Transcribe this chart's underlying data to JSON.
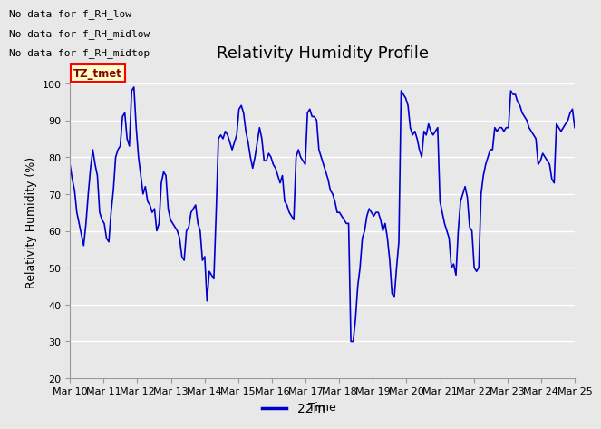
{
  "title": "Relativity Humidity Profile",
  "xlabel": "Time",
  "ylabel": "Relativity Humidity (%)",
  "ylim": [
    20,
    105
  ],
  "yticks": [
    20,
    30,
    40,
    50,
    60,
    70,
    80,
    90,
    100
  ],
  "line_color": "#0000cc",
  "line_width": 1.2,
  "bg_color": "#e8e8e8",
  "plot_bg_color": "#e8e8e8",
  "legend_label": "22m",
  "legend_line_color": "#0000cc",
  "no_data_texts": [
    "No data for f_RH_low",
    "No data for f_RH_midlow",
    "No data for f_RH_midtop"
  ],
  "tz_tmet_label": "TZ_tmet",
  "x_tick_labels": [
    "Mar 10",
    "Mar 11",
    "Mar 12",
    "Mar 13",
    "Mar 14",
    "Mar 15",
    "Mar 16",
    "Mar 17",
    "Mar 18",
    "Mar 19",
    "Mar 20",
    "Mar 21",
    "Mar 22",
    "Mar 23",
    "Mar 24",
    "Mar 25"
  ],
  "humidity_values": [
    78,
    74,
    71,
    65,
    62,
    59,
    56,
    62,
    70,
    77,
    82,
    78,
    75,
    65,
    63,
    62,
    58,
    57,
    65,
    71,
    80,
    82,
    83,
    91,
    92,
    85,
    83,
    98,
    99,
    88,
    80,
    75,
    70,
    72,
    68,
    67,
    65,
    66,
    60,
    62,
    73,
    76,
    75,
    66,
    63,
    62,
    61,
    60,
    58,
    53,
    52,
    60,
    61,
    65,
    66,
    67,
    62,
    60,
    52,
    53,
    41,
    49,
    48,
    47,
    65,
    85,
    86,
    85,
    87,
    86,
    84,
    82,
    84,
    86,
    93,
    94,
    92,
    87,
    84,
    80,
    77,
    80,
    84,
    88,
    85,
    79,
    79,
    81,
    80,
    78,
    77,
    75,
    73,
    75,
    68,
    67,
    65,
    64,
    63,
    80,
    82,
    80,
    79,
    78,
    92,
    93,
    91,
    91,
    90,
    82,
    80,
    78,
    76,
    74,
    71,
    70,
    68,
    65,
    65,
    64,
    63,
    62,
    62,
    30,
    30,
    36,
    45,
    50,
    58,
    60,
    64,
    66,
    65,
    64,
    65,
    65,
    63,
    60,
    62,
    58,
    52,
    43,
    42,
    50,
    57,
    98,
    97,
    96,
    94,
    88,
    86,
    87,
    85,
    82,
    80,
    87,
    86,
    89,
    87,
    86,
    87,
    88,
    68,
    65,
    62,
    60,
    58,
    50,
    51,
    48,
    60,
    68,
    70,
    72,
    69,
    61,
    60,
    50,
    49,
    50,
    70,
    75,
    78,
    80,
    82,
    82,
    88,
    87,
    88,
    88,
    87,
    88,
    88,
    98,
    97,
    97,
    95,
    94,
    92,
    91,
    90,
    88,
    87,
    86,
    85,
    78,
    79,
    81,
    80,
    79,
    78,
    74,
    73,
    89,
    88,
    87,
    88,
    89,
    90,
    92,
    93,
    88
  ]
}
